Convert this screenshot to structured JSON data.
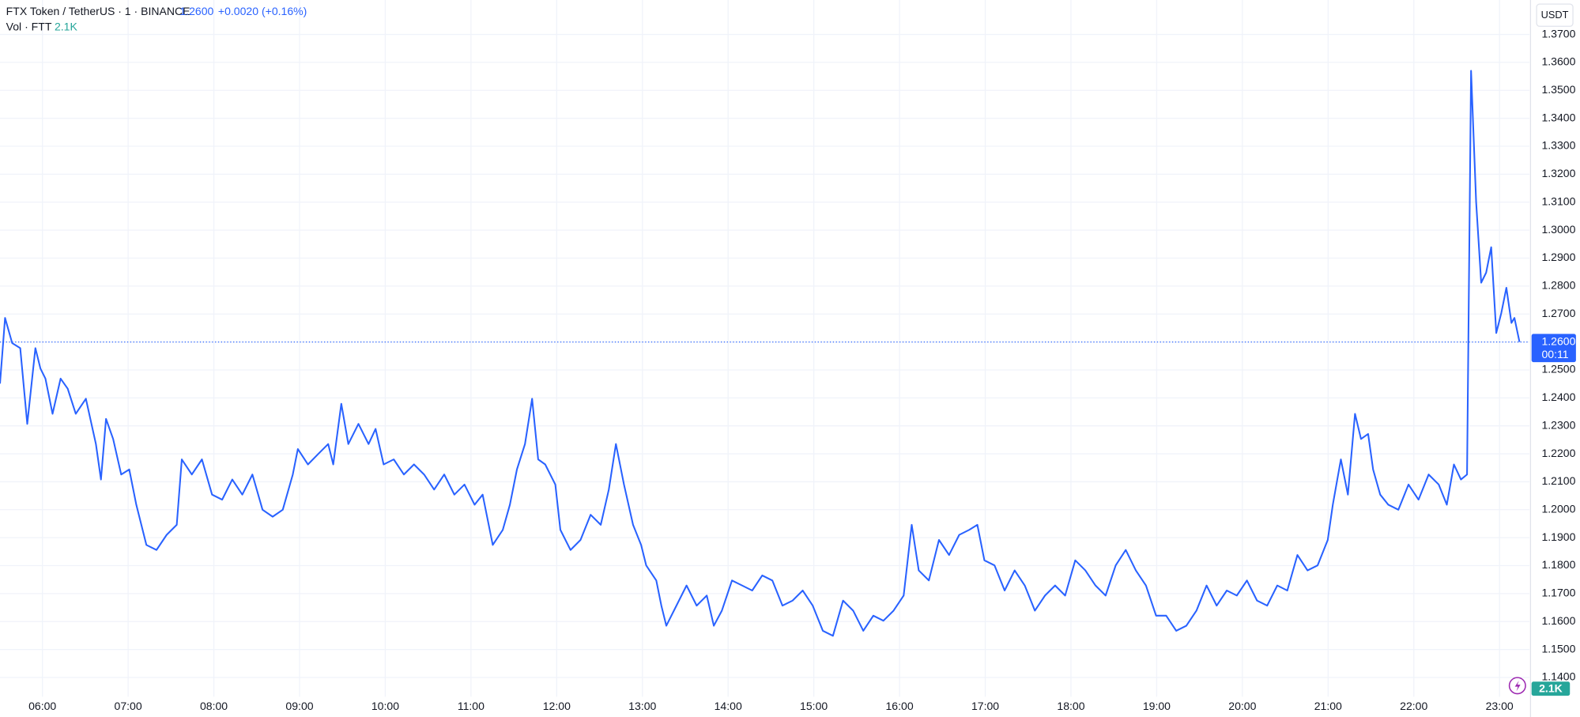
{
  "header": {
    "symbol": "FTX Token / TetherUS · 1 · BINANCE",
    "change": "+0.0020 (+0.16%)",
    "volume_label": "Vol · FTT",
    "volume_value": "2.1K",
    "currency": "USDT",
    "countdown": "00:11"
  },
  "chart_data": {
    "type": "line",
    "x": [
      5.505,
      5.564,
      5.647,
      5.741,
      5.823,
      5.918,
      5.977,
      6.035,
      6.118,
      6.212,
      6.295,
      6.389,
      6.507,
      6.624,
      6.683,
      6.742,
      6.825,
      6.919,
      7.013,
      7.095,
      7.213,
      7.331,
      7.449,
      7.567,
      7.626,
      7.743,
      7.861,
      7.979,
      8.097,
      8.215,
      8.332,
      8.45,
      8.568,
      8.686,
      8.804,
      8.921,
      8.98,
      9.098,
      9.216,
      9.334,
      9.393,
      9.487,
      9.569,
      9.687,
      9.805,
      9.887,
      9.981,
      10.099,
      10.217,
      10.335,
      10.453,
      10.57,
      10.688,
      10.806,
      10.924,
      11.042,
      11.136,
      11.254,
      11.371,
      11.454,
      11.536,
      11.63,
      11.713,
      11.784,
      11.866,
      11.984,
      12.043,
      12.161,
      12.278,
      12.396,
      12.514,
      12.608,
      12.691,
      12.785,
      12.891,
      12.985,
      13.044,
      13.162,
      13.221,
      13.279,
      13.397,
      13.515,
      13.633,
      13.751,
      13.833,
      13.927,
      14.045,
      14.163,
      14.281,
      14.398,
      14.516,
      14.634,
      14.752,
      14.87,
      14.987,
      15.105,
      15.223,
      15.341,
      15.459,
      15.577,
      15.694,
      15.812,
      15.93,
      16.048,
      16.142,
      16.224,
      16.342,
      16.46,
      16.578,
      16.696,
      16.813,
      16.908,
      16.99,
      17.108,
      17.226,
      17.343,
      17.461,
      17.579,
      17.697,
      17.815,
      17.932,
      18.05,
      18.168,
      18.286,
      18.404,
      18.522,
      18.639,
      18.757,
      18.875,
      18.993,
      19.111,
      19.228,
      19.346,
      19.464,
      19.582,
      19.7,
      19.818,
      19.935,
      20.053,
      20.171,
      20.289,
      20.407,
      20.524,
      20.642,
      20.76,
      20.878,
      20.996,
      21.055,
      21.149,
      21.231,
      21.314,
      21.384,
      21.467,
      21.525,
      21.608,
      21.702,
      21.82,
      21.938,
      22.055,
      22.173,
      22.291,
      22.385,
      22.468,
      22.55,
      22.621,
      22.668,
      22.727,
      22.786,
      22.844,
      22.903,
      22.962,
      23.021,
      23.08,
      23.139,
      23.174,
      23.233
    ],
    "series": [
      {
        "name": "FTX Token / TetherUS",
        "color": "#2962ff",
        "values": [
          1.2451,
          1.2686,
          1.2596,
          1.2578,
          1.2307,
          1.2578,
          1.2505,
          1.2469,
          1.2343,
          1.2469,
          1.2433,
          1.2343,
          1.2397,
          1.2235,
          1.2108,
          1.2325,
          1.2253,
          1.2126,
          1.2144,
          1.2018,
          1.1874,
          1.1856,
          1.191,
          1.1946,
          1.218,
          1.2126,
          1.218,
          1.2054,
          1.2036,
          1.2108,
          1.2054,
          1.2126,
          1.2,
          1.1975,
          1.2,
          1.2126,
          1.2217,
          1.2162,
          1.2199,
          1.2235,
          1.2162,
          1.2379,
          1.2235,
          1.2307,
          1.2235,
          1.2289,
          1.2162,
          1.218,
          1.2126,
          1.2162,
          1.2126,
          1.2072,
          1.2126,
          1.2054,
          1.209,
          1.2018,
          1.2054,
          1.1874,
          1.1928,
          1.2018,
          1.2144,
          1.2235,
          1.2397,
          1.218,
          1.2162,
          1.209,
          1.1928,
          1.1856,
          1.1892,
          1.1982,
          1.1946,
          1.2072,
          1.2235,
          1.209,
          1.1946,
          1.1874,
          1.1801,
          1.1747,
          1.1657,
          1.1585,
          1.1657,
          1.1729,
          1.1657,
          1.1693,
          1.1585,
          1.1639,
          1.1747,
          1.1729,
          1.1711,
          1.1765,
          1.1747,
          1.1657,
          1.1675,
          1.1711,
          1.1657,
          1.1567,
          1.1549,
          1.1675,
          1.1639,
          1.1567,
          1.1621,
          1.1603,
          1.1639,
          1.1693,
          1.1946,
          1.1783,
          1.1747,
          1.1892,
          1.1838,
          1.191,
          1.1928,
          1.1946,
          1.1819,
          1.1801,
          1.1711,
          1.1783,
          1.1729,
          1.1639,
          1.1693,
          1.1729,
          1.1693,
          1.1819,
          1.1783,
          1.1729,
          1.1693,
          1.1801,
          1.1856,
          1.1783,
          1.1729,
          1.1621,
          1.1621,
          1.1567,
          1.1585,
          1.1639,
          1.1729,
          1.1657,
          1.1711,
          1.1693,
          1.1747,
          1.1675,
          1.1657,
          1.1729,
          1.1711,
          1.1838,
          1.1783,
          1.1801,
          1.1892,
          1.2018,
          1.218,
          1.2054,
          1.2343,
          1.2253,
          1.2271,
          1.2144,
          1.2054,
          1.2018,
          1.2,
          1.209,
          1.2036,
          1.2126,
          1.209,
          1.2018,
          1.2162,
          1.2108,
          1.2126,
          1.357,
          1.3101,
          1.2812,
          1.2848,
          1.2939,
          1.2632,
          1.2704,
          1.2794,
          1.2668,
          1.2686,
          1.26
        ]
      }
    ],
    "last_price": {
      "value": 1.26,
      "label": "1.2600"
    },
    "xlim": [
      5.505,
      23.35
    ],
    "ylim": [
      1.1331,
      1.3823
    ],
    "xticks": [
      {
        "value": 6,
        "label": "06:00"
      },
      {
        "value": 7,
        "label": "07:00"
      },
      {
        "value": 8,
        "label": "08:00"
      },
      {
        "value": 9,
        "label": "09:00"
      },
      {
        "value": 10,
        "label": "10:00"
      },
      {
        "value": 11,
        "label": "11:00"
      },
      {
        "value": 12,
        "label": "12:00"
      },
      {
        "value": 13,
        "label": "13:00"
      },
      {
        "value": 14,
        "label": "14:00"
      },
      {
        "value": 15,
        "label": "15:00"
      },
      {
        "value": 16,
        "label": "16:00"
      },
      {
        "value": 17,
        "label": "17:00"
      },
      {
        "value": 18,
        "label": "18:00"
      },
      {
        "value": 19,
        "label": "19:00"
      },
      {
        "value": 20,
        "label": "20:00"
      },
      {
        "value": 21,
        "label": "21:00"
      },
      {
        "value": 22,
        "label": "22:00"
      },
      {
        "value": 23,
        "label": "23:00"
      }
    ],
    "yticks": [
      {
        "value": 1.14,
        "label": "1.1400"
      },
      {
        "value": 1.15,
        "label": "1.1500"
      },
      {
        "value": 1.16,
        "label": "1.1600"
      },
      {
        "value": 1.17,
        "label": "1.1700"
      },
      {
        "value": 1.18,
        "label": "1.1800"
      },
      {
        "value": 1.19,
        "label": "1.1900"
      },
      {
        "value": 1.2,
        "label": "1.2000"
      },
      {
        "value": 1.21,
        "label": "1.2100"
      },
      {
        "value": 1.22,
        "label": "1.2200"
      },
      {
        "value": 1.23,
        "label": "1.2300"
      },
      {
        "value": 1.24,
        "label": "1.2400"
      },
      {
        "value": 1.25,
        "label": "1.2500"
      },
      {
        "value": 1.26,
        "label": "1.2600"
      },
      {
        "value": 1.27,
        "label": "1.2700"
      },
      {
        "value": 1.28,
        "label": "1.2800"
      },
      {
        "value": 1.29,
        "label": "1.2900"
      },
      {
        "value": 1.3,
        "label": "1.3000"
      },
      {
        "value": 1.31,
        "label": "1.3100"
      },
      {
        "value": 1.32,
        "label": "1.3200"
      },
      {
        "value": 1.33,
        "label": "1.3300"
      },
      {
        "value": 1.34,
        "label": "1.3400"
      },
      {
        "value": 1.35,
        "label": "1.3500"
      },
      {
        "value": 1.36,
        "label": "1.3600"
      },
      {
        "value": 1.37,
        "label": "1.3700"
      }
    ],
    "grid": true
  }
}
